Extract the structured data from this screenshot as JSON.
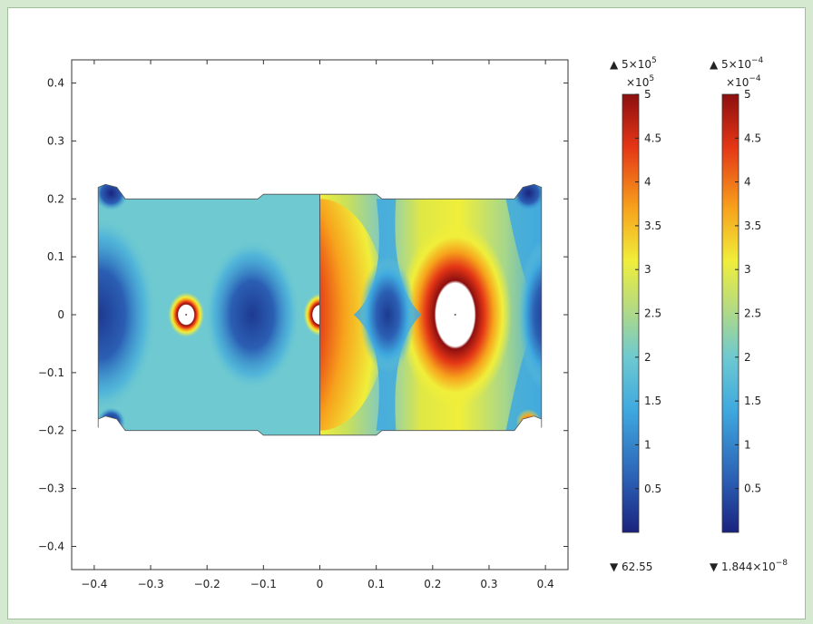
{
  "chart_data": {
    "type": "heatmap",
    "title": "",
    "xlabel": "",
    "ylabel": "",
    "xlim": [
      -0.44,
      0.44
    ],
    "ylim": [
      -0.44,
      0.44
    ],
    "x_ticks": [
      "−0.4",
      "−0.3",
      "−0.2",
      "−0.1",
      "0",
      "0.1",
      "0.2",
      "0.3",
      "0.4"
    ],
    "x_tick_values": [
      -0.4,
      -0.3,
      -0.2,
      -0.1,
      0,
      0.1,
      0.2,
      0.3,
      0.4
    ],
    "y_ticks": [
      "0.4",
      "0.3",
      "0.2",
      "0.1",
      "0",
      "−0.1",
      "−0.2",
      "−0.3",
      "−0.4"
    ],
    "y_tick_values": [
      0.4,
      0.3,
      0.2,
      0.1,
      0,
      -0.1,
      -0.2,
      -0.3,
      -0.4
    ],
    "grid": false,
    "colormap": [
      "#1a237e",
      "#2b5fb4",
      "#3fa9df",
      "#6ec9d0",
      "#b9dc7c",
      "#f0ee3a",
      "#f7a21c",
      "#e43616",
      "#8c0f0f"
    ],
    "colorbars": [
      {
        "max_label": "▲ 5×10",
        "max_exp": "5",
        "multiplier": "×10",
        "multiplier_exp": "5",
        "ticks": [
          "5",
          "4.5",
          "4",
          "3.5",
          "3",
          "2.5",
          "2",
          "1.5",
          "1",
          "0.5"
        ],
        "tick_values": [
          5,
          4.5,
          4,
          3.5,
          3,
          2.5,
          2,
          1.5,
          1,
          0.5
        ],
        "range": [
          0.0006255,
          5
        ],
        "min_label": "▼ 62.55",
        "min_exp": ""
      },
      {
        "max_label": "▲ 5×10",
        "max_exp": "−4",
        "multiplier": "×10",
        "multiplier_exp": "−4",
        "ticks": [
          "5",
          "4.5",
          "4",
          "3.5",
          "3",
          "2.5",
          "2",
          "1.5",
          "1",
          "0.5"
        ],
        "tick_values": [
          5,
          4.5,
          4,
          3.5,
          3,
          2.5,
          2,
          1.5,
          1,
          0.5
        ],
        "range": [
          0.0001844,
          5
        ],
        "min_label": "▼ 1.844×10",
        "min_exp": "−8"
      }
    ]
  }
}
